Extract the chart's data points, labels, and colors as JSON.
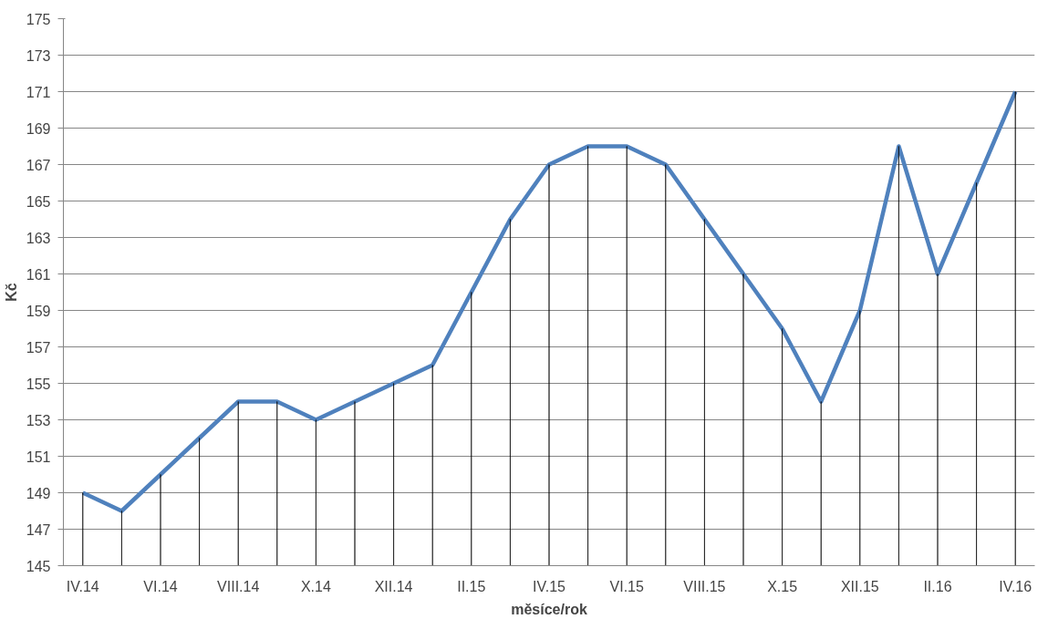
{
  "chart_data": {
    "type": "line",
    "xlabel": "měsíce/rok",
    "ylabel": "Kč",
    "categories": [
      "IV.14",
      null,
      "VI.14",
      null,
      "VIII.14",
      null,
      "X.14",
      null,
      "XII.14",
      null,
      "II.15",
      null,
      "IV.15",
      null,
      "VI.15",
      null,
      "VIII.15",
      null,
      "X.15",
      null,
      "XII.15",
      null,
      "II.16",
      null,
      "IV.16"
    ],
    "series": [
      {
        "color": "#4f81bd",
        "values": [
          149,
          148,
          150,
          152,
          154,
          154,
          153,
          154,
          155,
          156,
          160,
          164,
          167,
          168,
          168,
          167,
          164,
          161,
          158,
          154,
          159,
          168,
          161,
          166,
          171
        ]
      },
      {
        "type": "bar",
        "color": "#000000",
        "values": [
          149,
          148,
          150,
          152,
          154,
          154,
          153,
          154,
          155,
          156,
          160,
          164,
          167,
          168,
          168,
          167,
          164,
          161,
          158,
          154,
          159,
          168,
          161,
          166,
          171
        ]
      }
    ],
    "ylim": [
      145,
      175
    ],
    "yticks": [
      145,
      147,
      149,
      151,
      153,
      155,
      157,
      159,
      161,
      163,
      165,
      167,
      169,
      171,
      173,
      175
    ],
    "grid": "y",
    "marker": "none",
    "line_style": "solid"
  }
}
